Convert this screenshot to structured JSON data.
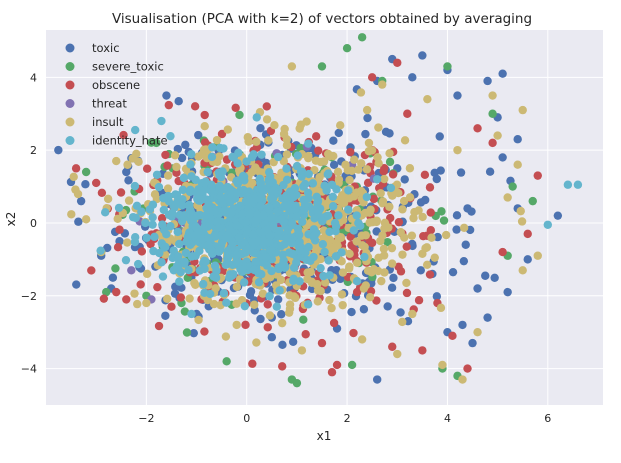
{
  "chart_data": {
    "type": "scatter",
    "title": "Visualisation (PCA with k=2) of vectors obtained by averaging",
    "xlabel": "x1",
    "ylabel": "x2",
    "xlim": [
      -4,
      7.1
    ],
    "ylim": [
      -5,
      5.3
    ],
    "xticks": [
      -2,
      0,
      2,
      4,
      6
    ],
    "yticks": [
      -4,
      -2,
      0,
      2,
      4
    ],
    "xtick_labels": [
      "−2",
      "0",
      "2",
      "4",
      "6"
    ],
    "ytick_labels": [
      "−4",
      "−2",
      "0",
      "2",
      "4"
    ],
    "grid": true,
    "legend_position": "top-left",
    "series": [
      {
        "name": "toxic",
        "color": "#4c72b0",
        "cluster": {
          "cx": 0.6,
          "cy": -0.05,
          "sx": 1.6,
          "sy": 1.25,
          "n": 420
        },
        "points": [
          [
            2.9,
            4.5
          ],
          [
            3.5,
            4.6
          ],
          [
            4.0,
            4.2
          ],
          [
            4.8,
            3.9
          ],
          [
            5.1,
            4.1
          ],
          [
            5.0,
            2.9
          ],
          [
            5.4,
            2.3
          ],
          [
            5.1,
            1.8
          ],
          [
            6.2,
            0.2
          ],
          [
            5.6,
            -1.0
          ],
          [
            5.2,
            -1.9
          ],
          [
            4.6,
            -1.8
          ],
          [
            4.8,
            -2.6
          ],
          [
            4.3,
            -2.8
          ],
          [
            4.0,
            -3.0
          ],
          [
            2.6,
            -4.3
          ],
          [
            4.5,
            -3.3
          ],
          [
            -2.9,
            -0.9
          ],
          [
            -3.3,
            0.6
          ],
          [
            -2.7,
            -1.8
          ],
          [
            -1.6,
            3.5
          ],
          [
            3.0,
            1.5
          ],
          [
            4.4,
            0.4
          ],
          [
            -2.4,
            1.4
          ],
          [
            0.5,
            -2.6
          ],
          [
            1.8,
            -2.9
          ],
          [
            3.7,
            -1.4
          ],
          [
            -1.0,
            -2.5
          ],
          [
            5.4,
            0.4
          ],
          [
            4.2,
            3.5
          ],
          [
            2.6,
            3.9
          ],
          [
            3.3,
            4.0
          ]
        ]
      },
      {
        "name": "severe_toxic",
        "color": "#55a868",
        "cluster": {
          "cx": 0.4,
          "cy": 0.0,
          "sx": 1.35,
          "sy": 1.0,
          "n": 160
        },
        "points": [
          [
            2.3,
            5.1
          ],
          [
            2.0,
            4.8
          ],
          [
            1.5,
            4.3
          ],
          [
            0.9,
            -4.3
          ],
          [
            1.0,
            -4.4
          ],
          [
            -0.4,
            -3.8
          ],
          [
            -2.0,
            -2.0
          ],
          [
            -2.8,
            -1.9
          ],
          [
            -2.9,
            -0.8
          ],
          [
            -3.2,
            1.4
          ],
          [
            -1.8,
            2.2
          ],
          [
            4.9,
            3.0
          ],
          [
            5.2,
            -0.9
          ],
          [
            5.7,
            0.6
          ],
          [
            5.3,
            1.0
          ],
          [
            3.9,
            -4.0
          ],
          [
            4.2,
            -4.2
          ],
          [
            2.7,
            3.9
          ],
          [
            4.0,
            4.3
          ],
          [
            2.1,
            -3.9
          ],
          [
            -1.3,
            -2.2
          ]
        ]
      },
      {
        "name": "obscene",
        "color": "#c44e52",
        "cluster": {
          "cx": 0.6,
          "cy": -0.05,
          "sx": 1.45,
          "sy": 1.15,
          "n": 380
        },
        "points": [
          [
            3.0,
            4.4
          ],
          [
            3.2,
            3.0
          ],
          [
            4.9,
            2.2
          ],
          [
            5.8,
            1.3
          ],
          [
            5.6,
            -0.3
          ],
          [
            5.1,
            -0.8
          ],
          [
            4.1,
            -3.1
          ],
          [
            1.8,
            -3.9
          ],
          [
            1.7,
            -4.1
          ],
          [
            -3.4,
            1.5
          ],
          [
            -3.0,
            1.1
          ],
          [
            -2.6,
            -1.9
          ],
          [
            -2.4,
            -2.1
          ],
          [
            3.5,
            -3.5
          ],
          [
            4.4,
            -4.0
          ],
          [
            2.5,
            4.0
          ],
          [
            4.6,
            2.6
          ],
          [
            3.8,
            -2.2
          ],
          [
            -1.5,
            -2.3
          ],
          [
            0.4,
            3.2
          ],
          [
            1.5,
            -3.3
          ],
          [
            2.9,
            -3.4
          ]
        ]
      },
      {
        "name": "threat",
        "color": "#8172b2",
        "cluster": {
          "cx": 0.3,
          "cy": 0.0,
          "sx": 0.9,
          "sy": 0.7,
          "n": 50
        },
        "points": [
          [
            -1.9,
            -2.1
          ],
          [
            -2.3,
            -1.3
          ],
          [
            1.2,
            2.1
          ],
          [
            2.1,
            1.6
          ]
        ]
      },
      {
        "name": "insult",
        "color": "#ccb974",
        "cluster": {
          "cx": 0.65,
          "cy": -0.05,
          "sx": 1.35,
          "sy": 1.1,
          "n": 700
        },
        "points": [
          [
            0.9,
            4.3
          ],
          [
            2.7,
            3.8
          ],
          [
            3.6,
            3.4
          ],
          [
            4.9,
            3.5
          ],
          [
            5.5,
            3.1
          ],
          [
            5.0,
            2.4
          ],
          [
            5.8,
            -0.9
          ],
          [
            5.5,
            -1.3
          ],
          [
            5.4,
            1.6
          ],
          [
            5.2,
            0.7
          ],
          [
            4.6,
            -3.0
          ],
          [
            3.0,
            -3.6
          ],
          [
            1.1,
            -3.5
          ],
          [
            3.9,
            -3.9
          ],
          [
            4.3,
            -4.3
          ],
          [
            -2.9,
            -0.8
          ],
          [
            -3.2,
            0.1
          ],
          [
            -2.6,
            1.7
          ],
          [
            -2.0,
            -2.2
          ],
          [
            -2.2,
            1.9
          ],
          [
            3.3,
            -2.5
          ],
          [
            2.3,
            -3.2
          ],
          [
            -0.2,
            -2.8
          ],
          [
            4.2,
            2.0
          ],
          [
            2.4,
            3.1
          ]
        ]
      },
      {
        "name": "identity_hate",
        "color": "#64b5cd",
        "cluster": {
          "cx": -0.1,
          "cy": 0.0,
          "sx": 0.9,
          "sy": 0.8,
          "n": 700
        },
        "points": [
          [
            6.4,
            1.05
          ],
          [
            6.6,
            1.05
          ],
          [
            6.0,
            -0.05
          ],
          [
            0.2,
            2.9
          ],
          [
            -1.1,
            -2.5
          ],
          [
            -1.7,
            2.8
          ],
          [
            0.6,
            -2.3
          ],
          [
            2.2,
            -1.6
          ],
          [
            2.6,
            1.2
          ]
        ]
      }
    ]
  }
}
